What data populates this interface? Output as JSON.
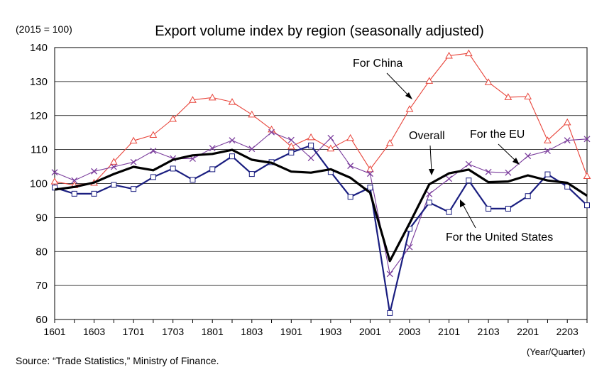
{
  "chart_data": {
    "type": "line",
    "title": "Export volume index by region (seasonally adjusted)",
    "unit_label": "(2015 = 100)",
    "xlabel": "(Year/Quarter)",
    "source": "Source: “Trade Statistics,” Ministry of Finance.",
    "ylim": [
      60,
      140
    ],
    "yticks": [
      "60",
      "70",
      "80",
      "90",
      "100",
      "110",
      "120",
      "130",
      "140"
    ],
    "xtick_labels": [
      "1601",
      "1603",
      "1701",
      "1703",
      "1801",
      "1803",
      "1901",
      "1903",
      "2001",
      "2003",
      "2101",
      "2103",
      "2201",
      "2203"
    ],
    "grid": true,
    "series": [
      {
        "name": "Overall",
        "color": "#000000",
        "marker": "none",
        "values": [
          98.2,
          99.0,
          100.3,
          102.8,
          104.9,
          103.9,
          107.0,
          108.3,
          108.7,
          109.9,
          107.0,
          106.1,
          103.5,
          103.2,
          104.2,
          101.7,
          97.3,
          77.2,
          88.3,
          99.8,
          103.0,
          104.1,
          100.4,
          100.6,
          102.4,
          100.9,
          100.2,
          96.4
        ]
      },
      {
        "name": "For China",
        "color": "#e8443a",
        "marker": "triangle",
        "values": [
          100.6,
          99.5,
          100.2,
          106.4,
          112.6,
          114.3,
          119.0,
          124.6,
          125.3,
          124.0,
          120.3,
          115.9,
          110.9,
          113.6,
          110.3,
          113.4,
          104.2,
          111.9,
          121.9,
          130.2,
          137.6,
          138.3,
          129.8,
          125.4,
          125.6,
          112.7,
          118.0,
          102.2
        ]
      },
      {
        "name": "For the EU",
        "color": "#7a3c9c",
        "marker": "x",
        "values": [
          103.3,
          100.9,
          103.6,
          104.9,
          106.3,
          109.6,
          107.4,
          107.3,
          110.4,
          112.7,
          110.2,
          115.1,
          112.8,
          107.5,
          113.4,
          105.2,
          102.9,
          73.4,
          81.3,
          96.9,
          101.4,
          105.7,
          103.4,
          103.2,
          108.1,
          109.6,
          112.7,
          113.1
        ]
      },
      {
        "name": "For the United States",
        "color": "#1a1e80",
        "marker": "square",
        "values": [
          98.8,
          97.0,
          97.0,
          99.6,
          98.4,
          101.9,
          104.4,
          101.1,
          104.2,
          108.0,
          102.8,
          106.3,
          109.1,
          111.2,
          103.4,
          96.1,
          98.8,
          61.9,
          86.7,
          94.4,
          91.6,
          100.9,
          92.6,
          92.6,
          96.3,
          102.7,
          99.1,
          93.6
        ]
      }
    ],
    "annotations": [
      {
        "label": "For China",
        "series": "For China"
      },
      {
        "label": "Overall",
        "series": "Overall"
      },
      {
        "label": "For the EU",
        "series": "For the EU"
      },
      {
        "label": "For the United States",
        "series": "For the United States"
      }
    ]
  }
}
